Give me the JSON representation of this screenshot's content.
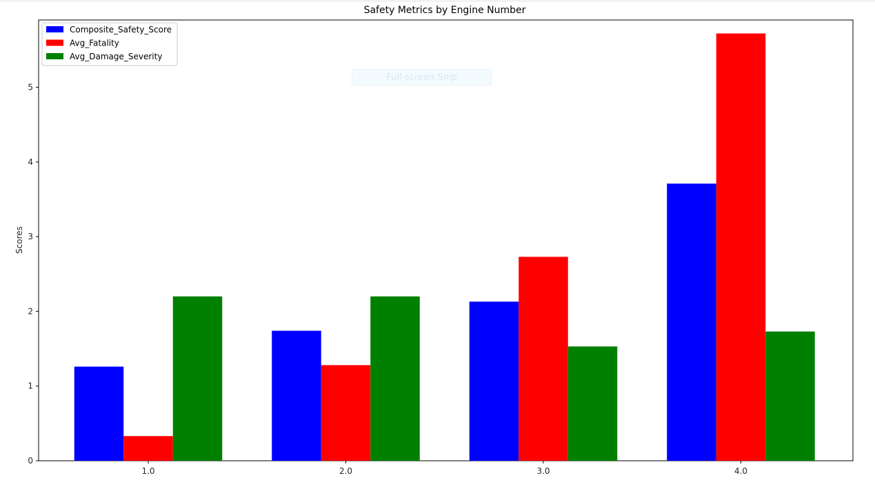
{
  "chart_data": {
    "type": "bar",
    "title": "Safety Metrics by Engine Number",
    "xlabel": "",
    "ylabel": "Scores",
    "categories": [
      "1.0",
      "2.0",
      "3.0",
      "4.0"
    ],
    "series": [
      {
        "name": "Composite_Safety_Score",
        "color": "#0000ff",
        "values": [
          1.26,
          1.74,
          2.13,
          3.71
        ]
      },
      {
        "name": "Avg_Fatality",
        "color": "#ff0000",
        "values": [
          0.33,
          1.28,
          2.73,
          5.72
        ]
      },
      {
        "name": "Avg_Damage_Severity",
        "color": "#008000",
        "values": [
          2.2,
          2.2,
          1.53,
          1.73
        ]
      }
    ],
    "ylim": [
      0,
      5.9
    ],
    "yticks": [
      "0",
      "1",
      "2",
      "3",
      "4",
      "5"
    ],
    "legend": "top-left",
    "grid": false
  },
  "overlay": {
    "label": "Full-screen Snip"
  }
}
